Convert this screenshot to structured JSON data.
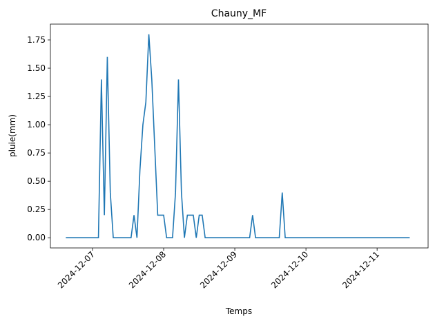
{
  "chart_data": {
    "type": "line",
    "title": "Chauny_MF",
    "xlabel": "Temps",
    "ylabel": "pluie(mm)",
    "x": [
      -9,
      2,
      3,
      4,
      5,
      6,
      7,
      13,
      14,
      15,
      16,
      17,
      18,
      19,
      20,
      21,
      22,
      23,
      24,
      25,
      27,
      28,
      29,
      30,
      31,
      32,
      34,
      35,
      36,
      37,
      38,
      53,
      54,
      55,
      63,
      64,
      65,
      107
    ],
    "series": [
      {
        "name": "pluie",
        "color": "#1f77b4",
        "values": [
          0,
          0,
          1.4,
          0.2,
          1.6,
          0.4,
          0,
          0,
          0.2,
          0,
          0.6,
          1.0,
          1.2,
          1.8,
          1.4,
          0.8,
          0.2,
          0.2,
          0.2,
          0,
          0,
          0.4,
          1.4,
          0.4,
          0,
          0.2,
          0.2,
          0,
          0.2,
          0.2,
          0,
          0,
          0.2,
          0,
          0,
          0.4,
          0,
          0
        ]
      }
    ],
    "xlim": [
      -14.2,
      113.2
    ],
    "xticks": [
      {
        "value": 0,
        "label": "2024-12-07"
      },
      {
        "value": 24,
        "label": "2024-12-08"
      },
      {
        "value": 48,
        "label": "2024-12-09"
      },
      {
        "value": 72,
        "label": "2024-12-10"
      },
      {
        "value": 96,
        "label": "2024-12-11"
      }
    ],
    "ylim": [
      -0.09,
      1.89
    ],
    "yticks": [
      {
        "value": 0,
        "label": "0.00"
      },
      {
        "value": 0.25,
        "label": "0.25"
      },
      {
        "value": 0.5,
        "label": "0.50"
      },
      {
        "value": 0.75,
        "label": "0.75"
      },
      {
        "value": 1.0,
        "label": "1.00"
      },
      {
        "value": 1.25,
        "label": "1.25"
      },
      {
        "value": 1.5,
        "label": "1.50"
      },
      {
        "value": 1.75,
        "label": "1.75"
      }
    ],
    "grid": false
  }
}
